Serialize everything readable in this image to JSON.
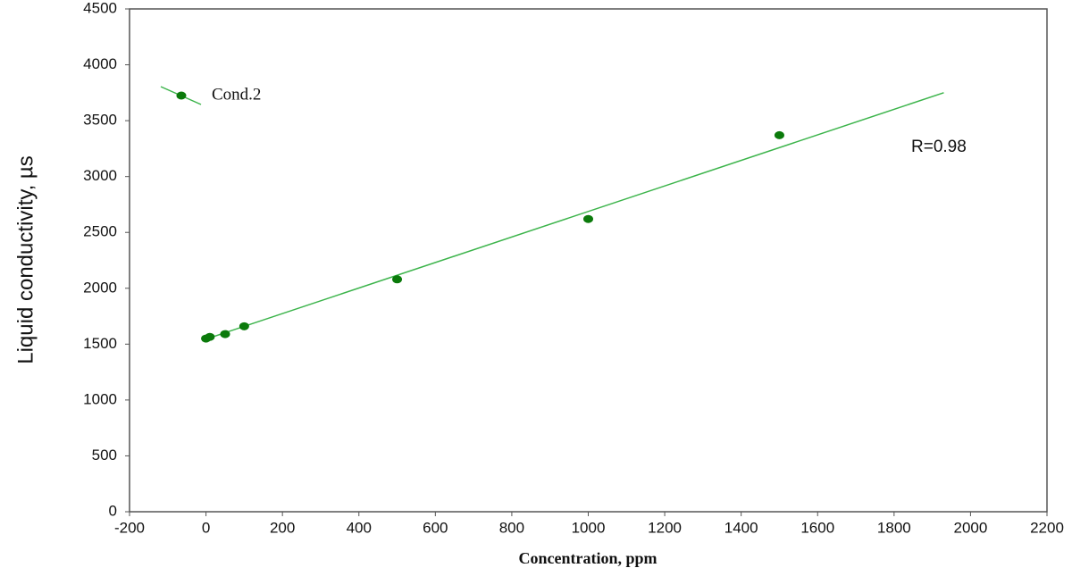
{
  "chart_data": {
    "type": "scatter",
    "xlabel": "Concentration, ppm",
    "ylabel": "Liquid  conductivity, µs",
    "annotation": "R=0.98",
    "xlim": [
      -200,
      2200
    ],
    "xticks": [
      -200,
      0,
      200,
      400,
      600,
      800,
      1000,
      1200,
      1400,
      1600,
      1800,
      2000,
      2200
    ],
    "ylim": [
      0,
      4500
    ],
    "yticks": [
      0,
      500,
      1000,
      1500,
      2000,
      2500,
      3000,
      3500,
      4000,
      4500
    ],
    "series": [
      {
        "name": "Cond.2",
        "color": "#0b7a0b",
        "x": [
          0,
          10,
          50,
          100,
          500,
          1000,
          1500
        ],
        "values": [
          1550,
          1565,
          1590,
          1660,
          2080,
          2620,
          3370
        ]
      }
    ],
    "fit": {
      "color": "#3cb44b",
      "x": [
        0,
        1930
      ],
      "values": [
        1545,
        3750
      ]
    }
  }
}
